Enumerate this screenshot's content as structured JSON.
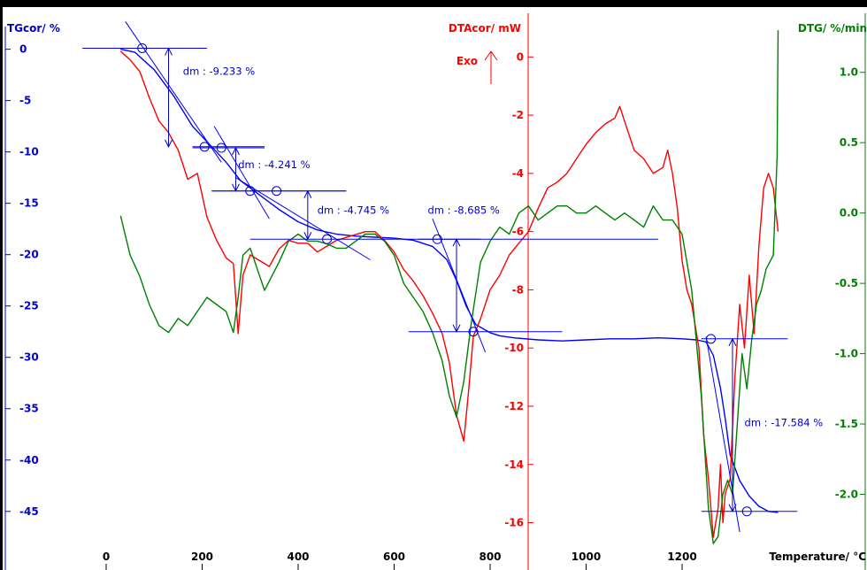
{
  "chart_data": {
    "type": "line",
    "axes": {
      "x": {
        "label": "Temperature/ °C",
        "range": [
          -40,
          1420
        ],
        "ticks": [
          "0",
          "200",
          "400",
          "600",
          "800",
          "1000",
          "1200"
        ]
      },
      "tg": {
        "label": "TGcor/ %",
        "range": [
          -49.5,
          3.5
        ],
        "ticks": [
          "0",
          "-5",
          "-10",
          "-15",
          "-20",
          "-25",
          "-30",
          "-35",
          "-40",
          "-45"
        ],
        "color": "#0000cc"
      },
      "dta": {
        "label": "DTAcor/ mW",
        "range": [
          -17.2,
          1.5
        ],
        "ticks": [
          "0",
          "-2",
          "-4",
          "-6",
          "-8",
          "-10",
          "-12",
          "-14",
          "-16"
        ],
        "color": "#ff0000",
        "exo_label": "Exo"
      },
      "dtg": {
        "label": "DTG/ %/min",
        "range": [
          -2.45,
          1.42
        ],
        "ticks": [
          "1.0",
          "0.5",
          "0.0",
          "-0.5",
          "-1.0",
          "-1.5",
          "-2.0"
        ],
        "color": "#008000"
      }
    },
    "series": [
      {
        "name": "TGcor",
        "axis": "tg",
        "color": "#0000ff",
        "x": [
          30,
          60,
          100,
          140,
          180,
          220,
          250,
          280,
          320,
          360,
          400,
          440,
          480,
          520,
          560,
          600,
          640,
          680,
          710,
          730,
          750,
          770,
          800,
          820,
          850,
          900,
          950,
          1000,
          1050,
          1100,
          1150,
          1200,
          1230,
          1250,
          1265,
          1280,
          1290,
          1300,
          1320,
          1340,
          1360,
          1380,
          1400
        ],
        "y": [
          0.0,
          -0.3,
          -2.0,
          -4.5,
          -7.5,
          -9.5,
          -11.0,
          -12.8,
          -14.2,
          -15.6,
          -16.8,
          -17.6,
          -18.0,
          -18.2,
          -18.3,
          -18.4,
          -18.6,
          -19.2,
          -20.5,
          -22.5,
          -25.0,
          -26.8,
          -27.6,
          -27.9,
          -28.1,
          -28.3,
          -28.4,
          -28.3,
          -28.2,
          -28.2,
          -28.1,
          -28.2,
          -28.3,
          -28.5,
          -29.8,
          -33.0,
          -36.0,
          -39.5,
          -42.0,
          -43.5,
          -44.5,
          -45.0,
          -45.1
        ]
      },
      {
        "name": "DTAcor",
        "axis": "dta",
        "color": "#ff0000",
        "x": [
          30,
          50,
          70,
          90,
          110,
          130,
          150,
          170,
          190,
          210,
          230,
          250,
          265,
          275,
          285,
          300,
          320,
          340,
          360,
          380,
          400,
          420,
          440,
          460,
          480,
          500,
          520,
          540,
          560,
          580,
          600,
          620,
          640,
          660,
          680,
          700,
          715,
          730,
          745,
          755,
          765,
          780,
          800,
          820,
          840,
          860,
          880,
          900,
          920,
          940,
          960,
          980,
          1000,
          1020,
          1040,
          1060,
          1070,
          1080,
          1100,
          1120,
          1140,
          1160,
          1170,
          1180,
          1190,
          1200,
          1210,
          1220,
          1235,
          1245,
          1255,
          1265,
          1275,
          1280,
          1285,
          1290,
          1300,
          1310,
          1320,
          1330,
          1340,
          1350,
          1360,
          1370,
          1380,
          1390,
          1400
        ],
        "y": [
          0.2,
          -0.1,
          -0.5,
          -1.4,
          -2.2,
          -2.6,
          -3.2,
          -4.2,
          -4.0,
          -5.5,
          -6.3,
          -6.9,
          -7.1,
          -9.5,
          -7.5,
          -6.8,
          -7.0,
          -7.2,
          -6.6,
          -6.3,
          -6.4,
          -6.4,
          -6.7,
          -6.5,
          -6.3,
          -6.2,
          -6.1,
          -6.0,
          -6.0,
          -6.3,
          -6.7,
          -7.3,
          -7.7,
          -8.2,
          -8.8,
          -9.5,
          -10.5,
          -12.3,
          -13.2,
          -11.5,
          -9.6,
          -9.0,
          -8.0,
          -7.5,
          -6.8,
          -6.4,
          -6.0,
          -5.2,
          -4.5,
          -4.3,
          -4.0,
          -3.5,
          -3.0,
          -2.6,
          -2.3,
          -2.1,
          -1.7,
          -2.2,
          -3.2,
          -3.5,
          -4.0,
          -3.8,
          -3.2,
          -4.0,
          -5.2,
          -7.0,
          -8.0,
          -8.5,
          -10.0,
          -13.0,
          -14.5,
          -16.5,
          -15.5,
          -14.0,
          -16.0,
          -15.0,
          -14.5,
          -11.0,
          -8.5,
          -10.0,
          -7.5,
          -9.5,
          -6.5,
          -4.5,
          -4.0,
          -4.5,
          -6.0
        ]
      },
      {
        "name": "DTG",
        "axis": "dtg",
        "color": "#008000",
        "x": [
          30,
          50,
          70,
          90,
          110,
          130,
          150,
          170,
          190,
          210,
          230,
          250,
          265,
          275,
          285,
          300,
          330,
          360,
          380,
          400,
          420,
          440,
          460,
          480,
          500,
          520,
          540,
          560,
          580,
          600,
          620,
          640,
          660,
          680,
          700,
          715,
          730,
          745,
          760,
          780,
          800,
          820,
          840,
          860,
          880,
          900,
          920,
          940,
          960,
          980,
          1000,
          1020,
          1040,
          1060,
          1080,
          1100,
          1120,
          1140,
          1160,
          1180,
          1200,
          1220,
          1240,
          1255,
          1265,
          1275,
          1285,
          1295,
          1305,
          1315,
          1325,
          1335,
          1345,
          1355,
          1365,
          1375,
          1390,
          1398,
          1400,
          1400
        ],
        "y": [
          -0.02,
          -0.3,
          -0.45,
          -0.65,
          -0.8,
          -0.85,
          -0.75,
          -0.8,
          -0.7,
          -0.6,
          -0.65,
          -0.7,
          -0.85,
          -0.6,
          -0.3,
          -0.25,
          -0.55,
          -0.35,
          -0.2,
          -0.15,
          -0.2,
          -0.2,
          -0.22,
          -0.25,
          -0.25,
          -0.2,
          -0.15,
          -0.15,
          -0.2,
          -0.3,
          -0.5,
          -0.6,
          -0.7,
          -0.85,
          -1.05,
          -1.3,
          -1.45,
          -1.2,
          -0.8,
          -0.35,
          -0.2,
          -0.1,
          -0.15,
          0.0,
          0.05,
          -0.05,
          0.0,
          0.05,
          0.05,
          0.0,
          0.0,
          0.05,
          0.0,
          -0.05,
          0.0,
          -0.05,
          -0.1,
          0.05,
          -0.05,
          -0.05,
          -0.15,
          -0.55,
          -1.3,
          -2.1,
          -2.35,
          -2.3,
          -2.0,
          -1.9,
          -2.0,
          -1.5,
          -1.0,
          -1.25,
          -0.9,
          -0.65,
          -0.55,
          -0.4,
          -0.3,
          0.4,
          1.3,
          1.3
        ]
      },
      {
        "name": "tangent-1a",
        "axis": "tg",
        "color": "#0000ff",
        "x": [
          -50,
          210
        ],
        "y": [
          0.1,
          0.1
        ]
      },
      {
        "name": "tangent-1b",
        "axis": "tg",
        "color": "#0000ff",
        "x": [
          180,
          330
        ],
        "y": [
          -9.5,
          -9.5
        ]
      },
      {
        "name": "tangent-1c",
        "axis": "tg",
        "color": "#0000ff",
        "x": [
          40,
          240
        ],
        "y": [
          2.7,
          -11.0
        ]
      },
      {
        "name": "tangent-2a",
        "axis": "tg",
        "color": "#0000ff",
        "x": [
          180,
          330
        ],
        "y": [
          -9.6,
          -9.6
        ]
      },
      {
        "name": "tangent-2b",
        "axis": "tg",
        "color": "#0000ff",
        "x": [
          220,
          500
        ],
        "y": [
          -13.8,
          -13.8
        ]
      },
      {
        "name": "tangent-2c",
        "axis": "tg",
        "color": "#0000ff",
        "x": [
          225,
          340
        ],
        "y": [
          -7.5,
          -16.5
        ]
      },
      {
        "name": "tangent-3a",
        "axis": "tg",
        "color": "#0000ff",
        "x": [
          220,
          500
        ],
        "y": [
          -13.8,
          -13.8
        ]
      },
      {
        "name": "tangent-3b",
        "axis": "tg",
        "color": "#0000ff",
        "x": [
          300,
          1150
        ],
        "y": [
          -18.5,
          -18.5
        ]
      },
      {
        "name": "tangent-3c",
        "axis": "tg",
        "color": "#0000ff",
        "x": [
          270,
          550
        ],
        "y": [
          -12.5,
          -20.5
        ]
      },
      {
        "name": "tangent-4a",
        "axis": "tg",
        "color": "#0000ff",
        "x": [
          650,
          780
        ],
        "y": [
          -18.5,
          -18.5
        ]
      },
      {
        "name": "tangent-4b",
        "axis": "tg",
        "color": "#0000ff",
        "x": [
          630,
          950
        ],
        "y": [
          -27.5,
          -27.5
        ]
      },
      {
        "name": "tangent-4c",
        "axis": "tg",
        "color": "#0000ff",
        "x": [
          680,
          790
        ],
        "y": [
          -16.5,
          -29.5
        ]
      },
      {
        "name": "tangent-5a",
        "axis": "tg",
        "color": "#0000ff",
        "x": [
          1240,
          1420
        ],
        "y": [
          -28.2,
          -28.2
        ]
      },
      {
        "name": "tangent-5b",
        "axis": "tg",
        "color": "#0000ff",
        "x": [
          1240,
          1440
        ],
        "y": [
          -45.0,
          -45.0
        ]
      },
      {
        "name": "tangent-5c",
        "axis": "tg",
        "color": "#0000ff",
        "x": [
          1250,
          1320
        ],
        "y": [
          -28.0,
          -47.0
        ]
      }
    ],
    "annotations": [
      {
        "text": "dm : -9.233 %",
        "x": 160,
        "y": -2.5,
        "axis": "tg",
        "color": "#0000cc"
      },
      {
        "text": "dm : -4.241 %",
        "x": 275,
        "y": -11.6,
        "axis": "tg",
        "color": "#0000cc"
      },
      {
        "text": "dm : -4.745 %",
        "x": 440,
        "y": -16.0,
        "axis": "tg",
        "color": "#0000cc"
      },
      {
        "text": "dm : -8.685 %",
        "x": 670,
        "y": -16.0,
        "axis": "tg",
        "color": "#0000cc"
      },
      {
        "text": "dm : -17.584 %",
        "x": 1330,
        "y": -36.7,
        "axis": "tg",
        "color": "#0000cc"
      }
    ],
    "dm_arrows": [
      {
        "x": 130,
        "from": 0.1,
        "to": -9.5
      },
      {
        "x": 270,
        "from": -9.6,
        "to": -13.8
      },
      {
        "x": 420,
        "from": -13.8,
        "to": -18.5
      },
      {
        "x": 730,
        "from": -18.5,
        "to": -27.5
      },
      {
        "x": 1305,
        "from": -28.2,
        "to": -45.0
      }
    ],
    "tangent_markers": [
      {
        "x": 75,
        "y": 0.1
      },
      {
        "x": 205,
        "y": -9.5
      },
      {
        "x": 240,
        "y": -9.6
      },
      {
        "x": 300,
        "y": -13.8
      },
      {
        "x": 355,
        "y": -13.8
      },
      {
        "x": 460,
        "y": -18.5
      },
      {
        "x": 690,
        "y": -18.5
      },
      {
        "x": 765,
        "y": -27.5
      },
      {
        "x": 1260,
        "y": -28.2
      },
      {
        "x": 1335,
        "y": -45.0
      }
    ],
    "grid": false,
    "background": "#ffffff"
  }
}
